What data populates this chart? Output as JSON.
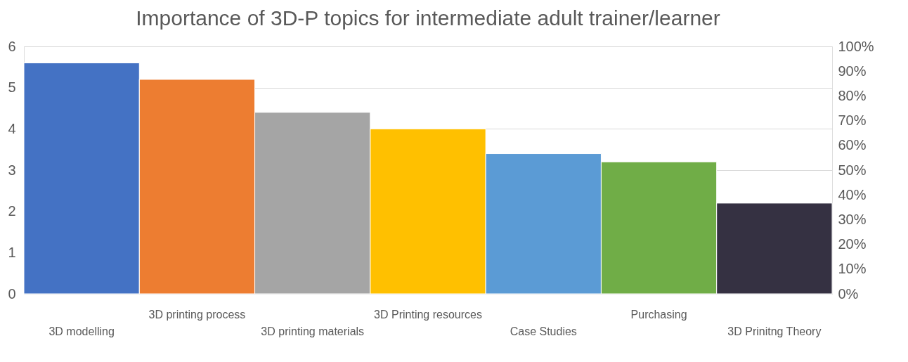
{
  "chart_data": {
    "type": "bar",
    "title": "Importance of 3D-P topics for intermediate adult trainer/learner",
    "categories": [
      "3D modelling",
      "3D printing process",
      "3D printing materials",
      "3D Printing resources",
      "Case Studies",
      "Purchasing",
      "3D Prinitng Theory"
    ],
    "values": [
      5.6,
      5.2,
      4.4,
      4.0,
      3.4,
      3.2,
      2.2
    ],
    "colors": [
      "#4472c4",
      "#ed7d31",
      "#a5a5a5",
      "#ffc000",
      "#5b9bd5",
      "#70ad47",
      "#353142"
    ],
    "ylim": [
      0,
      6
    ],
    "yticks": [
      0,
      1,
      2,
      3,
      4,
      5,
      6
    ],
    "y2lim": [
      0,
      100
    ],
    "y2ticks": [
      {
        "value": 0,
        "label": "0%"
      },
      {
        "value": 10,
        "label": "10%"
      },
      {
        "value": 20,
        "label": "20%"
      },
      {
        "value": 30,
        "label": "30%"
      },
      {
        "value": 40,
        "label": "40%"
      },
      {
        "value": 50,
        "label": "50%"
      },
      {
        "value": 60,
        "label": "60%"
      },
      {
        "value": 70,
        "label": "70%"
      },
      {
        "value": 80,
        "label": "80%"
      },
      {
        "value": 90,
        "label": "90%"
      },
      {
        "value": 100,
        "label": "100%"
      }
    ],
    "grid": "y",
    "legend": false
  }
}
